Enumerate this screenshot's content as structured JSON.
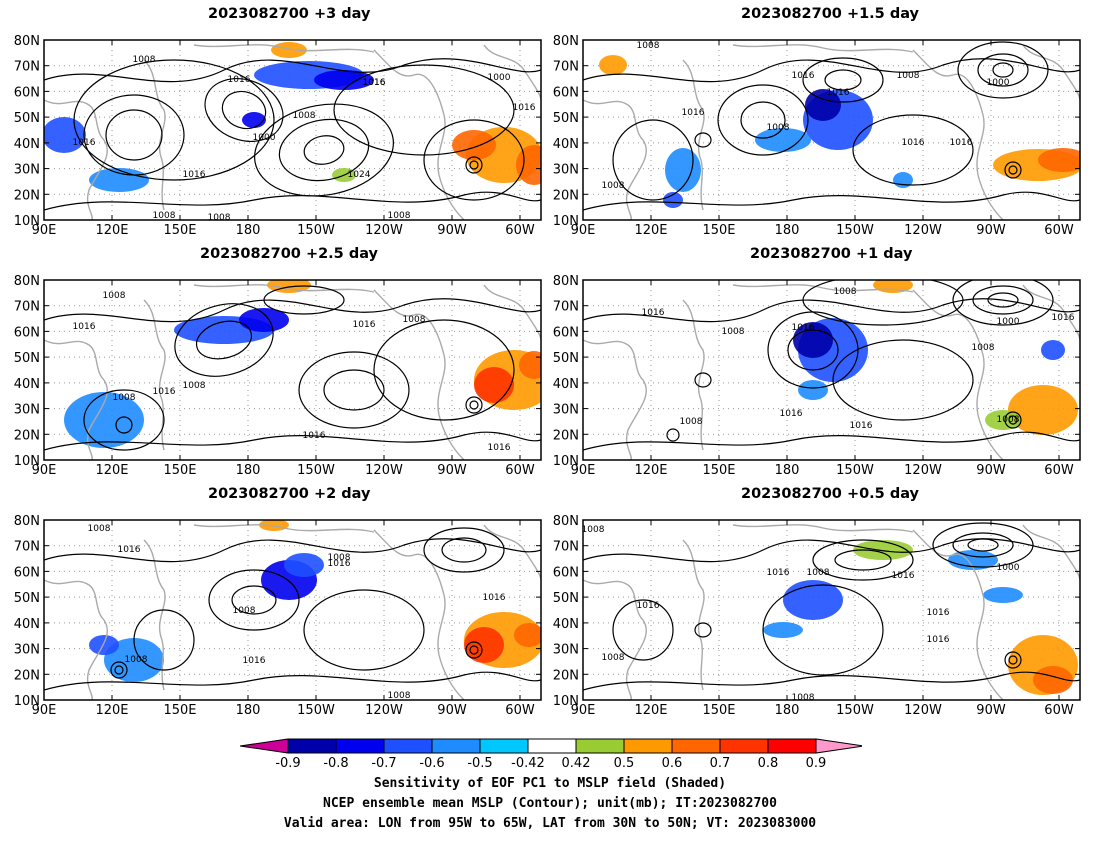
{
  "panels": [
    {
      "id": "p1",
      "title": "2023082700  +3 day",
      "contour_labels": [
        "1008",
        "1016",
        "1016",
        "1016",
        "1008",
        "1000",
        "1024",
        "1016",
        "1008",
        "1016",
        "1000",
        "1016",
        "1008",
        "1008"
      ],
      "yticks": [
        "80N",
        "70N",
        "60N",
        "50N",
        "40N",
        "30N",
        "20N",
        "10N"
      ],
      "xticks": [
        "90E",
        "120E",
        "150E",
        "180",
        "150W",
        "120W",
        "90W",
        "60W"
      ]
    },
    {
      "id": "p2",
      "title": "2023082700  +1.5 day",
      "contour_labels": [
        "1008",
        "1016",
        "1008",
        "1000",
        "1016",
        "1016",
        "1008",
        "1016",
        "1016",
        "1008"
      ],
      "yticks": [
        "80N",
        "70N",
        "60N",
        "50N",
        "40N",
        "30N",
        "20N",
        "10N"
      ],
      "xticks": [
        "90E",
        "120E",
        "150E",
        "180",
        "150W",
        "120W",
        "90W",
        "60W"
      ]
    },
    {
      "id": "p3",
      "title": "2023082700  +2.5 day",
      "contour_labels": [
        "1008",
        "1016",
        "1016",
        "1008",
        "1008",
        "1016",
        "1008",
        "1016",
        "1016"
      ],
      "yticks": [
        "80N",
        "70N",
        "60N",
        "50N",
        "40N",
        "30N",
        "20N",
        "10N"
      ],
      "xticks": [
        "90E",
        "120E",
        "150E",
        "180",
        "150W",
        "120W",
        "90W",
        "60W"
      ]
    },
    {
      "id": "p4",
      "title": "2023082700  +1 day",
      "contour_labels": [
        "1008",
        "1016",
        "1008",
        "1016",
        "1000",
        "1016",
        "1008",
        "1016",
        "1016",
        "1008",
        "1008"
      ],
      "yticks": [
        "80N",
        "70N",
        "60N",
        "50N",
        "40N",
        "30N",
        "20N",
        "10N"
      ],
      "xticks": [
        "90E",
        "120E",
        "150E",
        "180",
        "150W",
        "120W",
        "90W",
        "60W"
      ]
    },
    {
      "id": "p5",
      "title": "2023082700  +2 day",
      "contour_labels": [
        "1008",
        "1016",
        "1016",
        "1008",
        "1008",
        "1016",
        "1008",
        "1016",
        "1008"
      ],
      "yticks": [
        "80N",
        "70N",
        "60N",
        "50N",
        "40N",
        "30N",
        "20N",
        "10N"
      ],
      "xticks": [
        "90E",
        "120E",
        "150E",
        "180",
        "150W",
        "120W",
        "90W",
        "60W"
      ]
    },
    {
      "id": "p6",
      "title": "2023082700  +0.5 day",
      "contour_labels": [
        "1008",
        "1016",
        "1008",
        "1016",
        "1016",
        "1000",
        "1016",
        "1016",
        "1008",
        "1008"
      ],
      "yticks": [
        "80N",
        "70N",
        "60N",
        "50N",
        "40N",
        "30N",
        "20N",
        "10N"
      ],
      "xticks": [
        "90E",
        "120E",
        "150E",
        "180",
        "150W",
        "120W",
        "90W",
        "60W"
      ]
    }
  ],
  "colorbar": {
    "labels": [
      "-0.9",
      "-0.8",
      "-0.7",
      "-0.6",
      "-0.5",
      "-0.42",
      "0.42",
      "0.5",
      "0.6",
      "0.7",
      "0.8",
      "0.9"
    ],
    "colors": [
      "#cc0099",
      "#0000aa",
      "#0000ee",
      "#1e50ff",
      "#1e8cff",
      "#00c8ff",
      "#ffffff",
      "#99cc33",
      "#ff9900",
      "#ff6600",
      "#ff3300",
      "#ff0000",
      "#ff99cc"
    ]
  },
  "caption": {
    "line1": "Sensitivity of EOF PC1 to MSLP field (Shaded)",
    "line2": "NCEP ensemble mean MSLP (Contour); unit(mb); IT:2023082700",
    "line3": "Valid area: LON from 95W to 65W, LAT from 30N to 50N; VT: 2023083000"
  }
}
